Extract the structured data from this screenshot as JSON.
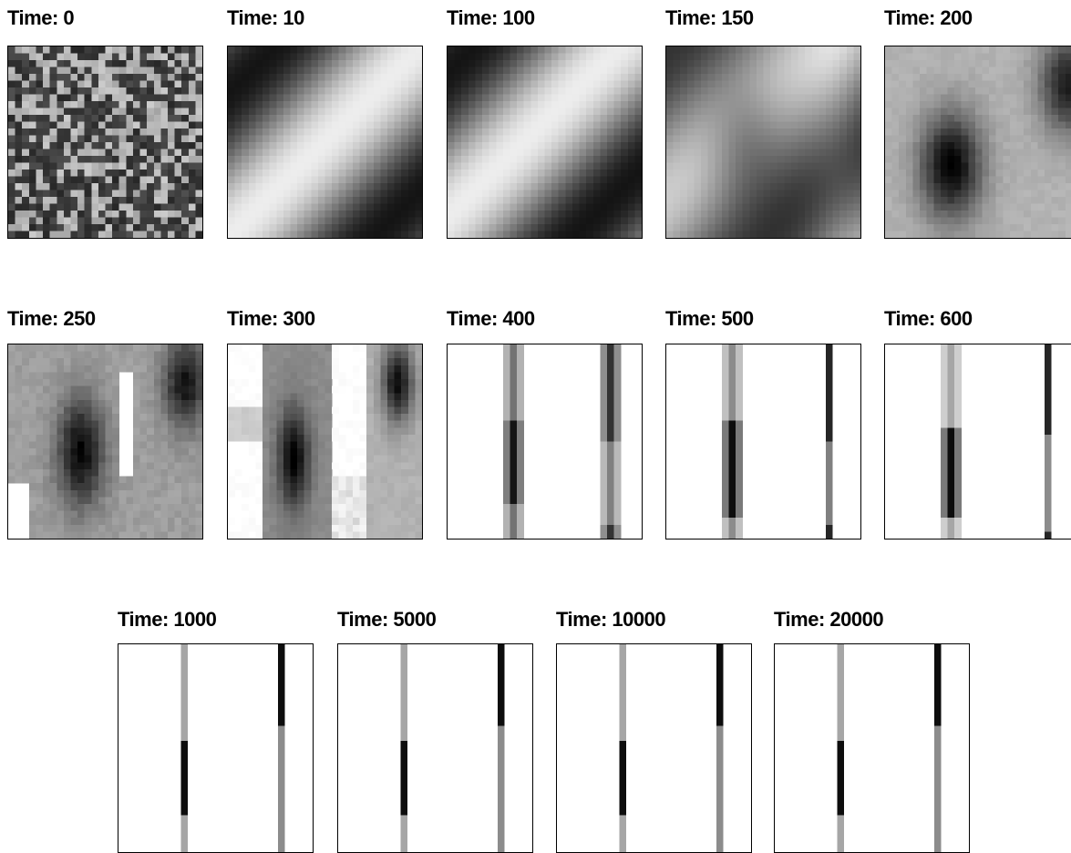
{
  "figure": {
    "panels": [
      {
        "id": "t0",
        "label": "Time: 0",
        "row": 0,
        "col": 0
      },
      {
        "id": "t10",
        "label": "Time: 10",
        "row": 0,
        "col": 1
      },
      {
        "id": "t100",
        "label": "Time: 100",
        "row": 0,
        "col": 2
      },
      {
        "id": "t150",
        "label": "Time: 150",
        "row": 0,
        "col": 3
      },
      {
        "id": "t200",
        "label": "Time: 200",
        "row": 0,
        "col": 4
      },
      {
        "id": "t250",
        "label": "Time: 250",
        "row": 1,
        "col": 0
      },
      {
        "id": "t300",
        "label": "Time: 300",
        "row": 1,
        "col": 1
      },
      {
        "id": "t400",
        "label": "Time: 400",
        "row": 1,
        "col": 2
      },
      {
        "id": "t500",
        "label": "Time: 500",
        "row": 1,
        "col": 3
      },
      {
        "id": "t600",
        "label": "Time: 600",
        "row": 1,
        "col": 4
      },
      {
        "id": "t1000",
        "label": "Time: 1000",
        "row": 2,
        "col": 0
      },
      {
        "id": "t5000",
        "label": "Time: 5000",
        "row": 2,
        "col": 1
      },
      {
        "id": "t10000",
        "label": "Time: 10000",
        "row": 2,
        "col": 2
      },
      {
        "id": "t20000",
        "label": "Time: 20000",
        "row": 2,
        "col": 3
      }
    ]
  },
  "colors": {
    "ink": "#000000",
    "paper": "#ffffff"
  }
}
